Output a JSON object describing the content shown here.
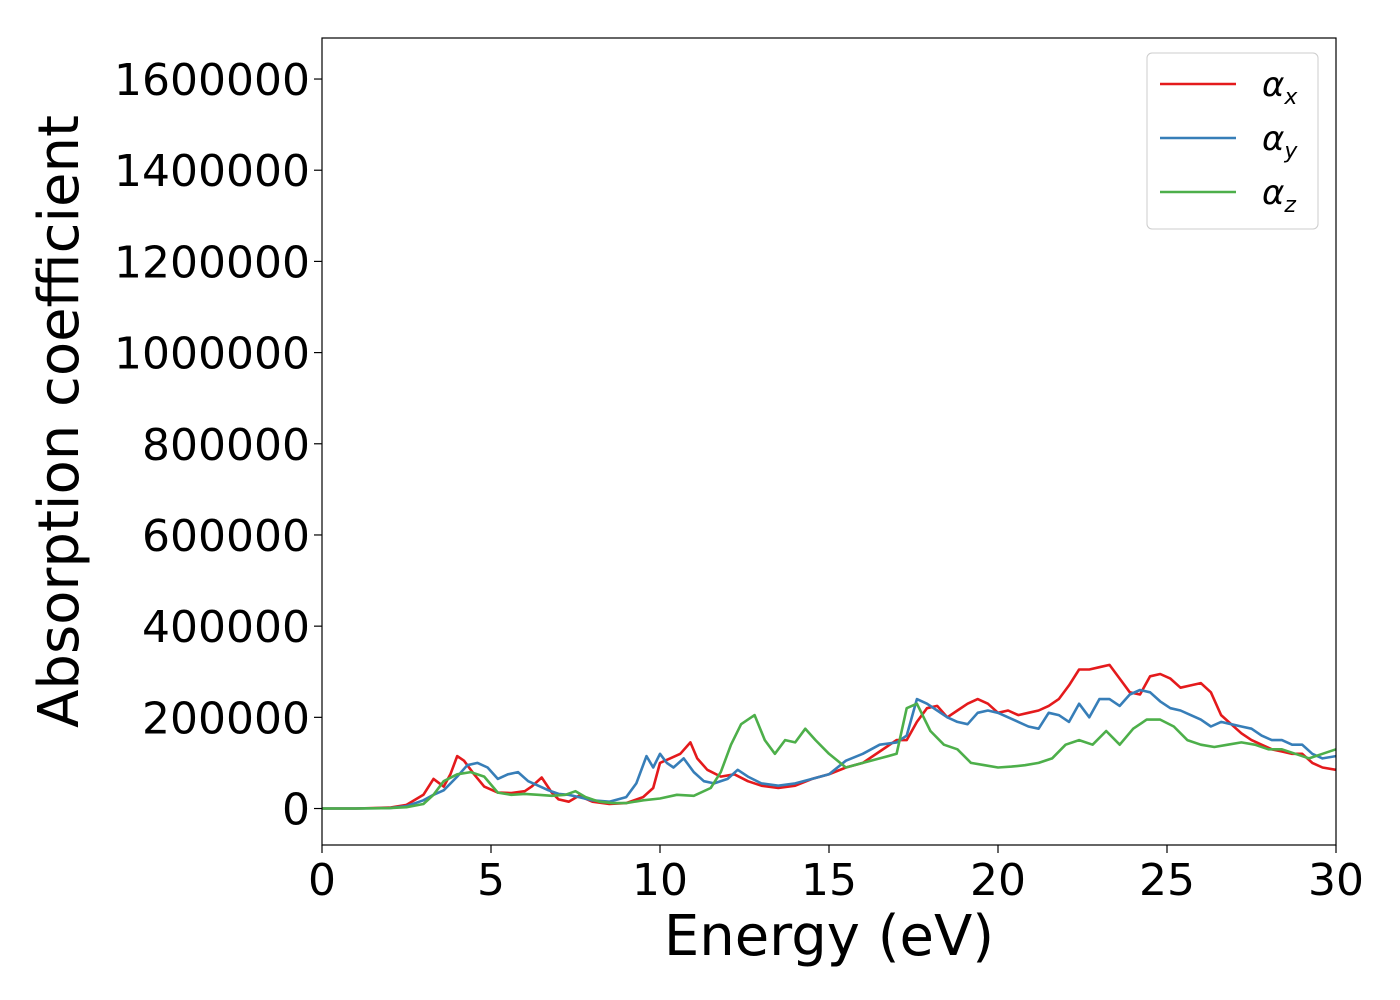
{
  "chart_data": {
    "type": "line",
    "title": "",
    "xlabel": "Energy (eV)",
    "ylabel": "Absorption coefficient",
    "xlim": [
      0,
      30
    ],
    "ylim": [
      -80000,
      1690000
    ],
    "xticks": [
      0,
      5,
      10,
      15,
      20,
      25,
      30
    ],
    "yticks": [
      0,
      200000,
      400000,
      600000,
      800000,
      1000000,
      1200000,
      1400000,
      1600000
    ],
    "grid": false,
    "legend_position": "top-right",
    "series": [
      {
        "name": "α",
        "subscript": "x",
        "color": "#e41a1c",
        "x": [
          0,
          1,
          2,
          2.5,
          3,
          3.3,
          3.6,
          3.8,
          4.0,
          4.2,
          4.5,
          4.8,
          5.2,
          5.6,
          6.0,
          6.2,
          6.5,
          6.8,
          7.0,
          7.3,
          7.6,
          8.0,
          8.5,
          9.0,
          9.5,
          9.8,
          10.0,
          10.3,
          10.6,
          10.9,
          11.1,
          11.4,
          11.8,
          12.2,
          12.6,
          13.0,
          13.5,
          14.0,
          14.5,
          15.0,
          15.5,
          16.0,
          16.5,
          17.0,
          17.3,
          17.6,
          17.9,
          18.2,
          18.5,
          18.8,
          19.1,
          19.4,
          19.7,
          20.0,
          20.3,
          20.6,
          20.9,
          21.2,
          21.5,
          21.8,
          22.1,
          22.4,
          22.7,
          23.0,
          23.3,
          23.6,
          23.9,
          24.2,
          24.5,
          24.8,
          25.1,
          25.4,
          25.7,
          26.0,
          26.3,
          26.6,
          26.9,
          27.2,
          27.5,
          27.8,
          28.1,
          28.4,
          28.7,
          29.0,
          29.3,
          29.6,
          30.0
        ],
        "y": [
          0,
          0,
          2000,
          8000,
          30000,
          65000,
          48000,
          75000,
          115000,
          105000,
          75000,
          48000,
          35000,
          34000,
          38000,
          48000,
          68000,
          35000,
          20000,
          15000,
          28000,
          15000,
          10000,
          12000,
          25000,
          45000,
          100000,
          110000,
          120000,
          145000,
          110000,
          85000,
          70000,
          75000,
          60000,
          50000,
          45000,
          50000,
          65000,
          75000,
          90000,
          100000,
          125000,
          150000,
          150000,
          190000,
          220000,
          225000,
          200000,
          215000,
          230000,
          240000,
          230000,
          210000,
          215000,
          205000,
          210000,
          215000,
          225000,
          240000,
          270000,
          305000,
          305000,
          310000,
          315000,
          285000,
          255000,
          250000,
          290000,
          295000,
          285000,
          265000,
          270000,
          275000,
          255000,
          205000,
          185000,
          165000,
          150000,
          140000,
          130000,
          125000,
          120000,
          120000,
          100000,
          90000,
          85000
        ]
      },
      {
        "name": "α",
        "subscript": "y",
        "color": "#377eb8",
        "x": [
          0,
          1,
          2,
          2.5,
          3,
          3.3,
          3.6,
          4.0,
          4.3,
          4.6,
          4.9,
          5.2,
          5.5,
          5.8,
          6.1,
          6.4,
          6.7,
          7.0,
          7.3,
          7.6,
          8.0,
          8.5,
          9.0,
          9.3,
          9.6,
          9.8,
          10.0,
          10.2,
          10.4,
          10.7,
          11.0,
          11.3,
          11.6,
          12.0,
          12.3,
          12.6,
          13.0,
          13.5,
          14.0,
          14.5,
          15.0,
          15.5,
          16.0,
          16.5,
          17.0,
          17.3,
          17.6,
          17.9,
          18.2,
          18.5,
          18.8,
          19.1,
          19.4,
          19.7,
          20.0,
          20.3,
          20.6,
          20.9,
          21.2,
          21.5,
          21.8,
          22.1,
          22.4,
          22.7,
          23.0,
          23.3,
          23.6,
          23.9,
          24.2,
          24.5,
          24.8,
          25.1,
          25.4,
          25.7,
          26.0,
          26.3,
          26.6,
          26.9,
          27.2,
          27.5,
          27.8,
          28.1,
          28.4,
          28.7,
          29.0,
          29.3,
          29.6,
          30.0
        ],
        "y": [
          0,
          0,
          1000,
          5000,
          18000,
          30000,
          40000,
          70000,
          95000,
          100000,
          90000,
          65000,
          75000,
          80000,
          60000,
          50000,
          40000,
          32000,
          30000,
          25000,
          18000,
          15000,
          25000,
          55000,
          115000,
          90000,
          120000,
          100000,
          90000,
          110000,
          80000,
          60000,
          55000,
          65000,
          85000,
          70000,
          55000,
          50000,
          55000,
          65000,
          75000,
          105000,
          120000,
          140000,
          145000,
          160000,
          240000,
          230000,
          215000,
          200000,
          190000,
          185000,
          210000,
          215000,
          210000,
          200000,
          190000,
          180000,
          175000,
          210000,
          205000,
          190000,
          230000,
          200000,
          240000,
          240000,
          225000,
          250000,
          260000,
          255000,
          235000,
          220000,
          215000,
          205000,
          195000,
          180000,
          190000,
          185000,
          180000,
          175000,
          160000,
          150000,
          150000,
          140000,
          140000,
          120000,
          110000,
          115000
        ]
      },
      {
        "name": "α",
        "subscript": "z",
        "color": "#4daf4a",
        "x": [
          0,
          1,
          2,
          2.5,
          3,
          3.3,
          3.6,
          4.0,
          4.4,
          4.8,
          5.2,
          5.6,
          6.0,
          6.4,
          6.8,
          7.2,
          7.5,
          7.8,
          8.2,
          8.6,
          9.0,
          9.5,
          10.0,
          10.5,
          11.0,
          11.5,
          11.8,
          12.1,
          12.4,
          12.8,
          13.1,
          13.4,
          13.7,
          14.0,
          14.3,
          14.6,
          15.0,
          15.5,
          16.0,
          16.5,
          17.0,
          17.3,
          17.6,
          18.0,
          18.4,
          18.8,
          19.2,
          19.6,
          20.0,
          20.4,
          20.8,
          21.2,
          21.6,
          22.0,
          22.4,
          22.8,
          23.2,
          23.6,
          24.0,
          24.4,
          24.8,
          25.2,
          25.6,
          26.0,
          26.4,
          26.8,
          27.2,
          27.6,
          28.0,
          28.4,
          28.8,
          29.2,
          29.6,
          30.0
        ],
        "y": [
          0,
          0,
          1000,
          3000,
          10000,
          30000,
          60000,
          75000,
          80000,
          70000,
          35000,
          30000,
          32000,
          30000,
          28000,
          30000,
          38000,
          25000,
          15000,
          12000,
          12000,
          18000,
          22000,
          30000,
          28000,
          45000,
          80000,
          140000,
          185000,
          205000,
          150000,
          120000,
          150000,
          145000,
          175000,
          150000,
          120000,
          90000,
          100000,
          110000,
          120000,
          220000,
          230000,
          170000,
          140000,
          130000,
          100000,
          95000,
          90000,
          92000,
          95000,
          100000,
          110000,
          140000,
          150000,
          140000,
          170000,
          140000,
          175000,
          195000,
          195000,
          180000,
          150000,
          140000,
          135000,
          140000,
          145000,
          140000,
          130000,
          130000,
          120000,
          110000,
          120000,
          130000
        ]
      }
    ]
  }
}
